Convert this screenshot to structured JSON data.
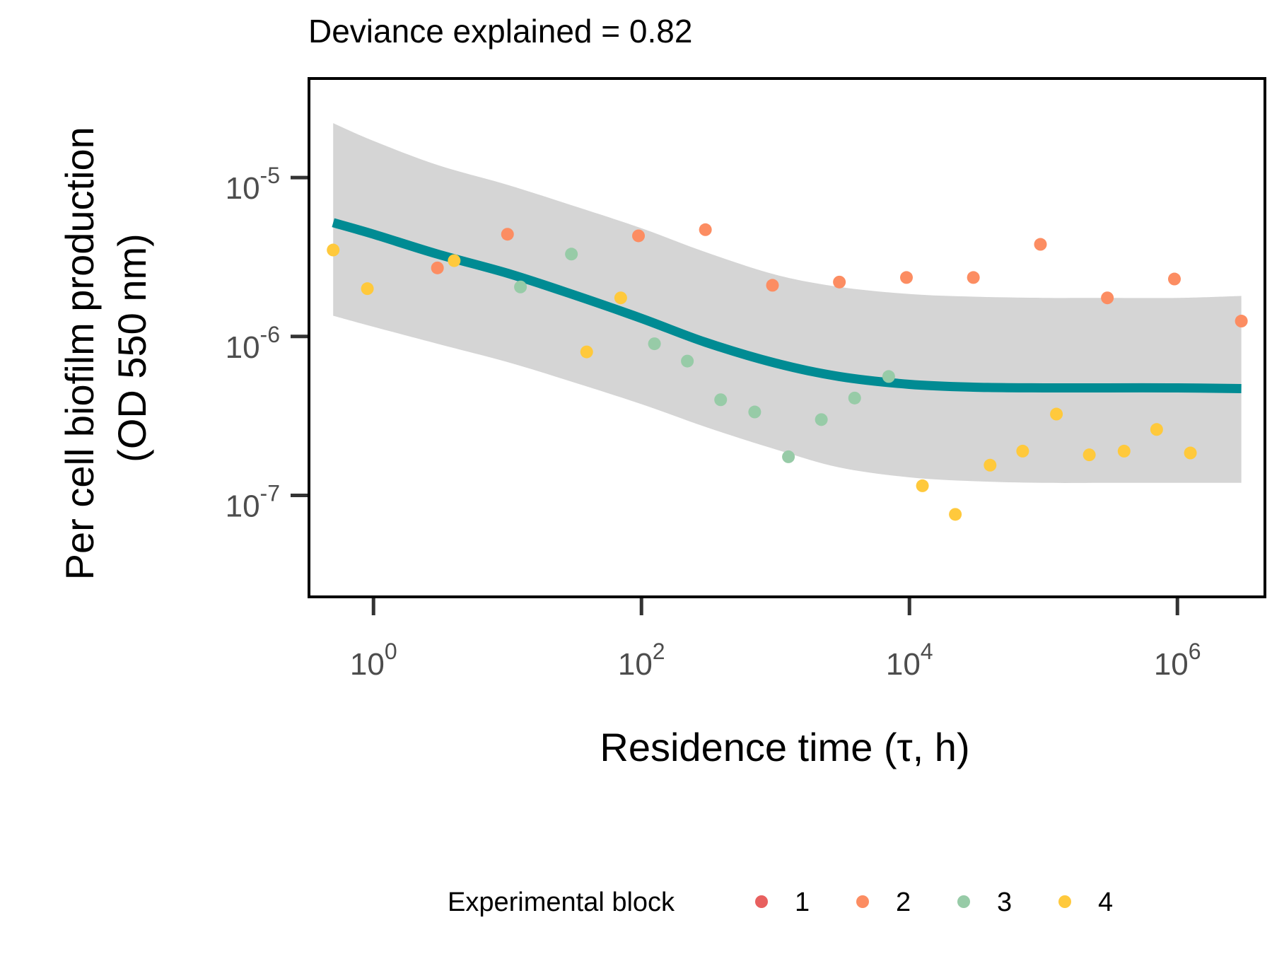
{
  "chart_data": {
    "type": "scatter",
    "title": "Deviance explained = 0.82",
    "xlabel": "Residence time (τ, h)",
    "ylabel_lines": [
      "Per cell biofilm production",
      "(OD 550 nm)"
    ],
    "x_scale": "log10",
    "y_scale": "log10",
    "xlim": [
      0.33,
      4500000
    ],
    "ylim": [
      2.3e-08,
      4.2e-05
    ],
    "x_ticks": [
      {
        "value": 1,
        "base": "10",
        "exp": "0"
      },
      {
        "value": 100,
        "base": "10",
        "exp": "2"
      },
      {
        "value": 10000,
        "base": "10",
        "exp": "4"
      },
      {
        "value": 1000000,
        "base": "10",
        "exp": "6"
      }
    ],
    "y_ticks": [
      {
        "value": 1e-05,
        "base": "10",
        "exp": "-5"
      },
      {
        "value": 1e-06,
        "base": "10",
        "exp": "-6"
      },
      {
        "value": 1e-07,
        "base": "10",
        "exp": "-7"
      }
    ],
    "grid": false,
    "legend": {
      "title": "Experimental block",
      "position": "bottom",
      "items": [
        {
          "label": "1",
          "color": "#E8605F"
        },
        {
          "label": "2",
          "color": "#FC8D62"
        },
        {
          "label": "3",
          "color": "#97CBA7"
        },
        {
          "label": "4",
          "color": "#FFC93C"
        }
      ]
    },
    "series": [
      {
        "name": "1",
        "color": "#E8605F",
        "points": []
      },
      {
        "name": "2",
        "color": "#FC8D62",
        "points": [
          [
            3.0,
            2.7e-06
          ],
          [
            10,
            4.4e-06
          ],
          [
            95,
            4.3e-06
          ],
          [
            300,
            4.7e-06
          ],
          [
            950,
            2.1e-06
          ],
          [
            3000,
            2.2e-06
          ],
          [
            9500,
            2.35e-06
          ],
          [
            30000,
            2.35e-06
          ],
          [
            95000,
            3.8e-06
          ],
          [
            300000,
            1.75e-06
          ],
          [
            950000,
            2.3e-06
          ],
          [
            3000000,
            1.25e-06
          ]
        ]
      },
      {
        "name": "3",
        "color": "#97CBA7",
        "points": [
          [
            12.5,
            2.05e-06
          ],
          [
            30,
            3.3e-06
          ],
          [
            125,
            9e-07
          ],
          [
            220,
            7e-07
          ],
          [
            390,
            4e-07
          ],
          [
            700,
            3.35e-07
          ],
          [
            1250,
            1.75e-07
          ],
          [
            2200,
            3e-07
          ],
          [
            3900,
            4.1e-07
          ],
          [
            7000,
            5.6e-07
          ]
        ]
      },
      {
        "name": "4",
        "color": "#FFC93C",
        "points": [
          [
            0.5,
            3.5e-06
          ],
          [
            0.9,
            2e-06
          ],
          [
            4.0,
            3e-06
          ],
          [
            39,
            8e-07
          ],
          [
            70,
            1.75e-06
          ],
          [
            12500,
            1.15e-07
          ],
          [
            22000,
            7.6e-08
          ],
          [
            40000,
            1.55e-07
          ],
          [
            70000,
            1.9e-07
          ],
          [
            125000,
            3.25e-07
          ],
          [
            220000,
            1.8e-07
          ],
          [
            400000,
            1.9e-07
          ],
          [
            700000,
            2.6e-07
          ],
          [
            1250000,
            1.85e-07
          ]
        ]
      }
    ],
    "fit": {
      "color": "#008B93",
      "ci_color": "#D5D5D5",
      "x": [
        0.5,
        1,
        3,
        10,
        30,
        100,
        300,
        1000,
        3000,
        10000,
        30000,
        100000,
        300000,
        1000000,
        3000000
      ],
      "y": [
        5.2e-06,
        4.4e-06,
        3.3e-06,
        2.5e-06,
        1.85e-06,
        1.3e-06,
        9.2e-07,
        6.8e-07,
        5.6e-07,
        5e-07,
        4.8e-07,
        4.75e-07,
        4.75e-07,
        4.75e-07,
        4.7e-07
      ],
      "lower": [
        1.35e-06,
        1.15e-06,
        9e-07,
        6.9e-07,
        5.2e-07,
        3.75e-07,
        2.7e-07,
        1.95e-07,
        1.5e-07,
        1.3e-07,
        1.23e-07,
        1.2e-07,
        1.2e-07,
        1.2e-07,
        1.2e-07
      ],
      "upper": [
        2.2e-05,
        1.7e-05,
        1.2e-05,
        9e-06,
        6.7e-06,
        4.8e-06,
        3.4e-06,
        2.45e-06,
        2.05e-06,
        1.85e-06,
        1.78e-06,
        1.75e-06,
        1.75e-06,
        1.75e-06,
        1.8e-06
      ]
    }
  }
}
